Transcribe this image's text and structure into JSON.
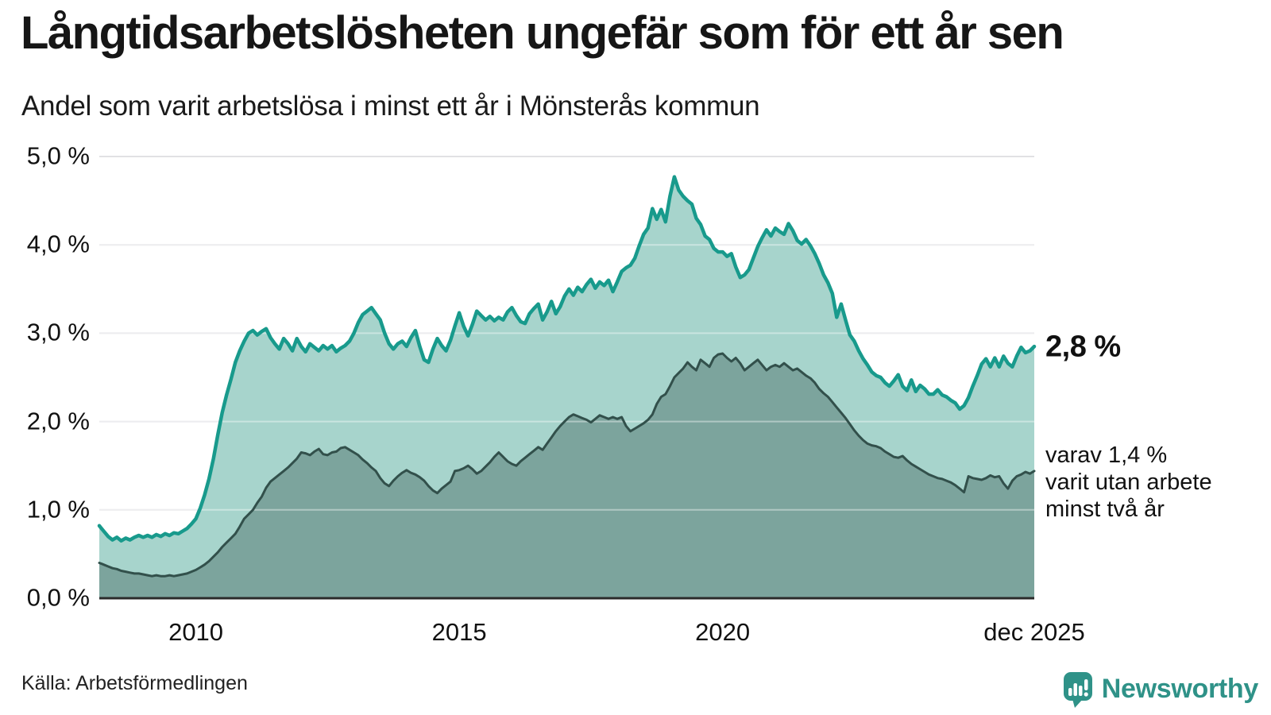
{
  "header": {
    "title": "Långtidsarbetslösheten ungefär som för ett år sen",
    "subtitle": "Andel som varit arbetslösa i minst ett år i Mönsterås kommun"
  },
  "annotations": {
    "total_end_label": "2,8 %",
    "breakdown_lines": [
      "varav 1,4 %",
      "varit utan arbete",
      "minst två år"
    ]
  },
  "footer": {
    "source": "Källa: Arbetsförmedlingen",
    "brand_name": "Newsworthy"
  },
  "colors": {
    "total_line": "#189a8c",
    "total_fill": "#a7d4cc",
    "twoyear_line": "#32504b",
    "twoyear_fill": "#7ca49d",
    "gridline": "#e1e1e4",
    "gridline_overlay": "rgba(255,255,255,0.40)",
    "axis_line": "#2b2b2b",
    "brand_teal": "#2f9288",
    "text": "#111111"
  },
  "chart_data": {
    "type": "area",
    "frequency": "monthly",
    "start": "2008-03",
    "end": "2025-12",
    "ylim": [
      0,
      5
    ],
    "grid": true,
    "y_ticks": [
      {
        "label": "5,0 %",
        "value": 5
      },
      {
        "label": "4,0 %",
        "value": 4
      },
      {
        "label": "3,0 %",
        "value": 3
      },
      {
        "label": "2,0 %",
        "value": 2
      },
      {
        "label": "1,0 %",
        "value": 1
      },
      {
        "label": "0,0 %",
        "value": 0
      }
    ],
    "x_ticks": [
      {
        "label": "2010",
        "index": 22
      },
      {
        "label": "2015",
        "index": 82
      },
      {
        "label": "2020",
        "index": 142
      },
      {
        "label": "dec 2025",
        "index": 213
      }
    ],
    "series": [
      {
        "id": "arbetslosa_minst_ett_ar_totalt",
        "end_value_label": "2,8 %",
        "values": [
          0.82,
          0.76,
          0.7,
          0.66,
          0.69,
          0.65,
          0.68,
          0.66,
          0.69,
          0.71,
          0.69,
          0.71,
          0.69,
          0.72,
          0.7,
          0.73,
          0.71,
          0.74,
          0.73,
          0.76,
          0.79,
          0.84,
          0.9,
          1.02,
          1.17,
          1.35,
          1.58,
          1.85,
          2.1,
          2.3,
          2.48,
          2.67,
          2.8,
          2.91,
          3.0,
          3.03,
          2.98,
          3.02,
          3.05,
          2.95,
          2.88,
          2.82,
          2.94,
          2.88,
          2.8,
          2.94,
          2.85,
          2.79,
          2.88,
          2.84,
          2.8,
          2.86,
          2.82,
          2.86,
          2.79,
          2.83,
          2.86,
          2.91,
          3.0,
          3.12,
          3.21,
          3.25,
          3.29,
          3.22,
          3.15,
          3.0,
          2.88,
          2.82,
          2.88,
          2.91,
          2.85,
          2.95,
          3.03,
          2.85,
          2.7,
          2.67,
          2.82,
          2.94,
          2.86,
          2.8,
          2.92,
          3.08,
          3.23,
          3.08,
          2.97,
          3.1,
          3.25,
          3.2,
          3.15,
          3.19,
          3.14,
          3.18,
          3.15,
          3.24,
          3.29,
          3.2,
          3.13,
          3.11,
          3.22,
          3.28,
          3.33,
          3.15,
          3.24,
          3.36,
          3.22,
          3.3,
          3.42,
          3.5,
          3.43,
          3.52,
          3.47,
          3.55,
          3.61,
          3.51,
          3.58,
          3.54,
          3.6,
          3.47,
          3.58,
          3.7,
          3.74,
          3.77,
          3.85,
          3.99,
          4.12,
          4.19,
          4.41,
          4.29,
          4.4,
          4.26,
          4.55,
          4.77,
          4.62,
          4.55,
          4.5,
          4.46,
          4.3,
          4.23,
          4.1,
          4.06,
          3.96,
          3.92,
          3.92,
          3.87,
          3.9,
          3.75,
          3.63,
          3.66,
          3.72,
          3.85,
          3.98,
          4.08,
          4.17,
          4.1,
          4.19,
          4.15,
          4.12,
          4.24,
          4.16,
          4.05,
          4.01,
          4.06,
          3.99,
          3.9,
          3.79,
          3.66,
          3.57,
          3.45,
          3.18,
          3.33,
          3.15,
          2.98,
          2.91,
          2.8,
          2.71,
          2.64,
          2.56,
          2.52,
          2.5,
          2.44,
          2.4,
          2.46,
          2.53,
          2.4,
          2.35,
          2.47,
          2.34,
          2.41,
          2.37,
          2.31,
          2.31,
          2.36,
          2.3,
          2.28,
          2.24,
          2.21,
          2.14,
          2.18,
          2.27,
          2.4,
          2.52,
          2.65,
          2.71,
          2.62,
          2.72,
          2.62,
          2.74,
          2.66,
          2.62,
          2.74,
          2.84,
          2.78,
          2.8,
          2.85
        ]
      },
      {
        "id": "utan_arbete_minst_tva_ar",
        "end_value_label": "1,4 %",
        "values": [
          0.4,
          0.38,
          0.36,
          0.34,
          0.33,
          0.31,
          0.3,
          0.29,
          0.28,
          0.28,
          0.27,
          0.26,
          0.25,
          0.26,
          0.25,
          0.25,
          0.26,
          0.25,
          0.26,
          0.27,
          0.28,
          0.3,
          0.32,
          0.35,
          0.38,
          0.42,
          0.47,
          0.52,
          0.58,
          0.63,
          0.68,
          0.73,
          0.81,
          0.9,
          0.95,
          1.0,
          1.08,
          1.15,
          1.25,
          1.32,
          1.36,
          1.4,
          1.44,
          1.48,
          1.53,
          1.58,
          1.65,
          1.64,
          1.62,
          1.66,
          1.69,
          1.63,
          1.62,
          1.65,
          1.66,
          1.7,
          1.71,
          1.68,
          1.65,
          1.62,
          1.57,
          1.53,
          1.48,
          1.44,
          1.36,
          1.3,
          1.27,
          1.33,
          1.38,
          1.42,
          1.45,
          1.42,
          1.4,
          1.37,
          1.33,
          1.27,
          1.22,
          1.19,
          1.24,
          1.28,
          1.32,
          1.44,
          1.45,
          1.47,
          1.5,
          1.46,
          1.41,
          1.44,
          1.49,
          1.54,
          1.6,
          1.65,
          1.6,
          1.55,
          1.52,
          1.5,
          1.55,
          1.59,
          1.63,
          1.67,
          1.71,
          1.68,
          1.75,
          1.82,
          1.89,
          1.95,
          2.0,
          2.05,
          2.08,
          2.06,
          2.04,
          2.02,
          1.99,
          2.03,
          2.07,
          2.05,
          2.03,
          2.05,
          2.03,
          2.05,
          1.95,
          1.89,
          1.92,
          1.95,
          1.98,
          2.02,
          2.08,
          2.2,
          2.28,
          2.31,
          2.4,
          2.5,
          2.55,
          2.6,
          2.67,
          2.62,
          2.58,
          2.7,
          2.66,
          2.62,
          2.72,
          2.76,
          2.77,
          2.72,
          2.68,
          2.72,
          2.66,
          2.58,
          2.62,
          2.66,
          2.7,
          2.64,
          2.58,
          2.62,
          2.64,
          2.62,
          2.66,
          2.62,
          2.58,
          2.6,
          2.56,
          2.52,
          2.49,
          2.44,
          2.37,
          2.32,
          2.28,
          2.22,
          2.16,
          2.1,
          2.04,
          1.97,
          1.9,
          1.84,
          1.79,
          1.75,
          1.73,
          1.72,
          1.7,
          1.66,
          1.63,
          1.6,
          1.59,
          1.61,
          1.56,
          1.52,
          1.49,
          1.46,
          1.43,
          1.4,
          1.38,
          1.36,
          1.35,
          1.33,
          1.31,
          1.28,
          1.24,
          1.2,
          1.38,
          1.36,
          1.35,
          1.34,
          1.36,
          1.39,
          1.37,
          1.38,
          1.3,
          1.24,
          1.33,
          1.38,
          1.4,
          1.43,
          1.41,
          1.44
        ]
      }
    ]
  }
}
